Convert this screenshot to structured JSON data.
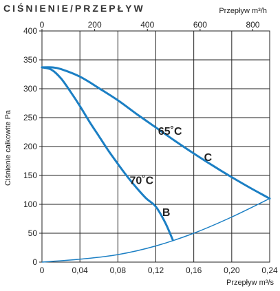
{
  "chart_data": {
    "type": "line",
    "title": "CIŚNIENIE/PRZEPŁYW",
    "xlabel": "Przepływ m³/s",
    "x2label": "Przepływ m³/h",
    "ylabel": "Ciśnienie całkowite Pa",
    "xlim": [
      0,
      0.24
    ],
    "x2lim": [
      0,
      864
    ],
    "ylim": [
      0,
      400
    ],
    "x_ticks": [
      "0",
      "0,04",
      "0,08",
      "0,12",
      "0,16",
      "0,20",
      "0,24"
    ],
    "x_tick_values": [
      0,
      0.04,
      0.08,
      0.12,
      0.16,
      0.2,
      0.24
    ],
    "x2_ticks": [
      "0",
      "200",
      "400",
      "600",
      "800"
    ],
    "x2_tick_values": [
      0,
      200,
      400,
      600,
      800
    ],
    "y_ticks": [
      "0",
      "50",
      "100",
      "150",
      "200",
      "250",
      "300",
      "350",
      "400"
    ],
    "y_tick_values": [
      0,
      50,
      100,
      150,
      200,
      250,
      300,
      350,
      400
    ],
    "grid": true,
    "colors": {
      "curve": "#1b7fc4",
      "grid": "#222222",
      "text": "#222222"
    },
    "series": [
      {
        "name": "C",
        "x": [
          0,
          0.01,
          0.02,
          0.04,
          0.06,
          0.08,
          0.1,
          0.12,
          0.14,
          0.16,
          0.18,
          0.2,
          0.22,
          0.24
        ],
        "y": [
          337,
          337,
          334,
          321,
          301,
          280,
          256,
          233,
          210,
          188,
          167,
          147,
          128,
          110
        ]
      },
      {
        "name": "B",
        "x": [
          0,
          0.01,
          0.02,
          0.03,
          0.04,
          0.05,
          0.06,
          0.07,
          0.08,
          0.09,
          0.1,
          0.11,
          0.12,
          0.13,
          0.138
        ],
        "y": [
          337,
          333,
          318,
          295,
          270,
          243,
          218,
          193,
          170,
          148,
          128,
          110,
          96,
          68,
          38
        ]
      },
      {
        "name": "",
        "x": [
          0,
          0.04,
          0.08,
          0.12,
          0.16,
          0.2,
          0.24
        ],
        "y": [
          0,
          5,
          13,
          28,
          50,
          78,
          110
        ]
      }
    ],
    "annotations": [
      {
        "text": "65˚C",
        "x": 0.135,
        "y": 220
      },
      {
        "text": "C",
        "x": 0.175,
        "y": 175
      },
      {
        "text": "70˚C",
        "x": 0.105,
        "y": 135
      },
      {
        "text": "B",
        "x": 0.131,
        "y": 80
      }
    ]
  }
}
